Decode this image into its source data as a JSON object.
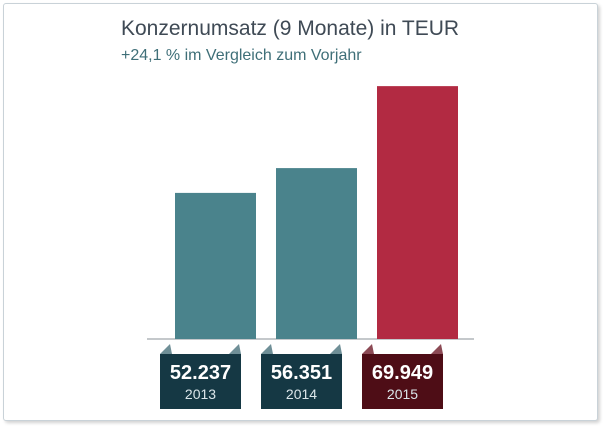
{
  "chart_data": {
    "type": "bar",
    "title": "Konzernumsatz (9 Monate) in TEUR",
    "subtitle": "+24,1 % im Vergleich zum Vorjahr",
    "categories": [
      "2013",
      "2014",
      "2015"
    ],
    "values": [
      52237,
      56351,
      69949
    ],
    "value_labels": [
      "52.237",
      "56.351",
      "69.949"
    ],
    "ylim": [
      28000,
      70800
    ],
    "grid": false,
    "colors": {
      "bars": [
        "#4a838c",
        "#4a838c",
        "#b22a42"
      ],
      "label_boxes": [
        "#153844",
        "#153844",
        "#4e0d16"
      ],
      "label_box_folds": [
        "#6f8f97",
        "#6f8f97",
        "#8c4a55"
      ],
      "baseline": "#8a9297"
    }
  }
}
